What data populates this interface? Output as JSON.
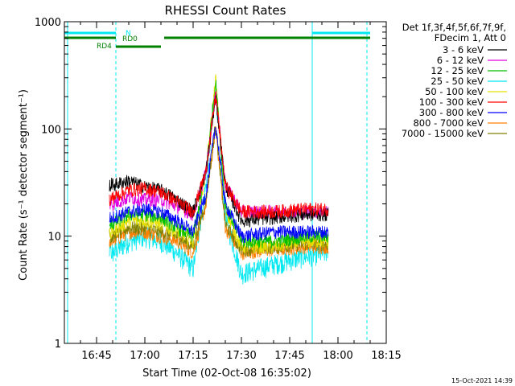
{
  "chart_data": {
    "type": "line",
    "title": "RHESSI Count Rates",
    "xlabel": "Start Time (02-Oct-08 16:35:02)",
    "ylabel": "Count Rate (s⁻¹ detector segment⁻¹)",
    "y_scale": "log",
    "ylim": [
      1,
      1000
    ],
    "xlim": [
      "16:35",
      "18:15"
    ],
    "x_ticks": [
      "16:45",
      "17:00",
      "17:15",
      "17:30",
      "17:45",
      "18:00",
      "18:15"
    ],
    "y_ticks": [
      "1",
      "10",
      "100",
      "1000"
    ],
    "grid": false,
    "legend_position": "right",
    "legend_header": [
      "Det 1f,3f,4f,5f,6f,7f,9f,",
      "FDecim 1, Att 0"
    ],
    "data_window": [
      "16:49",
      "17:57"
    ],
    "series": [
      {
        "name": "3 - 6 keV",
        "color": "#000000",
        "values": [
          {
            "x": "16:50",
            "y": 30
          },
          {
            "x": "16:55",
            "y": 33
          },
          {
            "x": "17:00",
            "y": 29
          },
          {
            "x": "17:05",
            "y": 27
          },
          {
            "x": "17:10",
            "y": 22
          },
          {
            "x": "17:15",
            "y": 17
          },
          {
            "x": "17:19",
            "y": 40
          },
          {
            "x": "17:22",
            "y": 200
          },
          {
            "x": "17:25",
            "y": 30
          },
          {
            "x": "17:30",
            "y": 14
          },
          {
            "x": "17:40",
            "y": 15
          },
          {
            "x": "17:50",
            "y": 16
          },
          {
            "x": "17:56",
            "y": 16
          }
        ]
      },
      {
        "name": "6 - 12 keV",
        "color": "#e000e0",
        "values": [
          {
            "x": "16:50",
            "y": 20
          },
          {
            "x": "16:55",
            "y": 23
          },
          {
            "x": "17:00",
            "y": 22
          },
          {
            "x": "17:05",
            "y": 22
          },
          {
            "x": "17:10",
            "y": 19
          },
          {
            "x": "17:15",
            "y": 16
          },
          {
            "x": "17:19",
            "y": 40
          },
          {
            "x": "17:22",
            "y": 220
          },
          {
            "x": "17:25",
            "y": 30
          },
          {
            "x": "17:30",
            "y": 17
          },
          {
            "x": "17:40",
            "y": 17
          },
          {
            "x": "17:50",
            "y": 17
          },
          {
            "x": "17:56",
            "y": 17
          }
        ]
      },
      {
        "name": "12 - 25 keV",
        "color": "#00c000",
        "values": [
          {
            "x": "16:50",
            "y": 13
          },
          {
            "x": "16:55",
            "y": 16
          },
          {
            "x": "17:00",
            "y": 16
          },
          {
            "x": "17:05",
            "y": 15
          },
          {
            "x": "17:10",
            "y": 12
          },
          {
            "x": "17:15",
            "y": 10
          },
          {
            "x": "17:19",
            "y": 40
          },
          {
            "x": "17:22",
            "y": 280
          },
          {
            "x": "17:25",
            "y": 20
          },
          {
            "x": "17:30",
            "y": 9
          },
          {
            "x": "17:40",
            "y": 9
          },
          {
            "x": "17:50",
            "y": 10
          },
          {
            "x": "17:56",
            "y": 10
          }
        ]
      },
      {
        "name": "25 - 50 keV",
        "color": "#00e8f0",
        "values": [
          {
            "x": "16:50",
            "y": 7
          },
          {
            "x": "16:55",
            "y": 9
          },
          {
            "x": "17:00",
            "y": 10
          },
          {
            "x": "17:05",
            "y": 9
          },
          {
            "x": "17:10",
            "y": 7
          },
          {
            "x": "17:15",
            "y": 5
          },
          {
            "x": "17:19",
            "y": 30
          },
          {
            "x": "17:22",
            "y": 250
          },
          {
            "x": "17:25",
            "y": 15
          },
          {
            "x": "17:30",
            "y": 4.5
          },
          {
            "x": "17:40",
            "y": 5.5
          },
          {
            "x": "17:50",
            "y": 6.5
          },
          {
            "x": "17:56",
            "y": 7
          }
        ]
      },
      {
        "name": "50 - 100 keV",
        "color": "#e8e000",
        "values": [
          {
            "x": "16:50",
            "y": 11
          },
          {
            "x": "16:55",
            "y": 14
          },
          {
            "x": "17:00",
            "y": 14
          },
          {
            "x": "17:05",
            "y": 13
          },
          {
            "x": "17:10",
            "y": 11
          },
          {
            "x": "17:15",
            "y": 9
          },
          {
            "x": "17:19",
            "y": 40
          },
          {
            "x": "17:22",
            "y": 300
          },
          {
            "x": "17:25",
            "y": 18
          },
          {
            "x": "17:30",
            "y": 8
          },
          {
            "x": "17:40",
            "y": 8
          },
          {
            "x": "17:50",
            "y": 9
          },
          {
            "x": "17:56",
            "y": 9
          }
        ]
      },
      {
        "name": "100 - 300 keV",
        "color": "#ff0000",
        "values": [
          {
            "x": "16:50",
            "y": 23
          },
          {
            "x": "16:55",
            "y": 27
          },
          {
            "x": "17:00",
            "y": 28
          },
          {
            "x": "17:05",
            "y": 26
          },
          {
            "x": "17:10",
            "y": 21
          },
          {
            "x": "17:15",
            "y": 17
          },
          {
            "x": "17:19",
            "y": 40
          },
          {
            "x": "17:22",
            "y": 210
          },
          {
            "x": "17:25",
            "y": 30
          },
          {
            "x": "17:30",
            "y": 17
          },
          {
            "x": "17:40",
            "y": 17
          },
          {
            "x": "17:50",
            "y": 18
          },
          {
            "x": "17:56",
            "y": 18
          }
        ]
      },
      {
        "name": "300 - 800 keV",
        "color": "#0000ff",
        "values": [
          {
            "x": "16:50",
            "y": 15
          },
          {
            "x": "16:55",
            "y": 17
          },
          {
            "x": "17:00",
            "y": 18
          },
          {
            "x": "17:05",
            "y": 17
          },
          {
            "x": "17:10",
            "y": 14
          },
          {
            "x": "17:15",
            "y": 11
          },
          {
            "x": "17:19",
            "y": 25
          },
          {
            "x": "17:22",
            "y": 110
          },
          {
            "x": "17:25",
            "y": 20
          },
          {
            "x": "17:30",
            "y": 10
          },
          {
            "x": "17:40",
            "y": 11
          },
          {
            "x": "17:50",
            "y": 11
          },
          {
            "x": "17:56",
            "y": 11
          }
        ]
      },
      {
        "name": "800 - 7000 keV",
        "color": "#ff8000",
        "values": [
          {
            "x": "16:50",
            "y": 9
          },
          {
            "x": "16:55",
            "y": 11
          },
          {
            "x": "17:00",
            "y": 11
          },
          {
            "x": "17:05",
            "y": 10
          },
          {
            "x": "17:10",
            "y": 9
          },
          {
            "x": "17:15",
            "y": 7
          },
          {
            "x": "17:19",
            "y": 20
          },
          {
            "x": "17:22",
            "y": 105
          },
          {
            "x": "17:25",
            "y": 12
          },
          {
            "x": "17:30",
            "y": 7
          },
          {
            "x": "17:40",
            "y": 7.5
          },
          {
            "x": "17:50",
            "y": 8
          },
          {
            "x": "17:56",
            "y": 8
          }
        ]
      },
      {
        "name": "7000 - 15000 keV",
        "color": "#808000",
        "values": [
          {
            "x": "16:50",
            "y": 10
          },
          {
            "x": "16:55",
            "y": 12
          },
          {
            "x": "17:00",
            "y": 12
          },
          {
            "x": "17:05",
            "y": 11
          },
          {
            "x": "17:10",
            "y": 10
          },
          {
            "x": "17:15",
            "y": 8
          },
          {
            "x": "17:19",
            "y": 22
          },
          {
            "x": "17:22",
            "y": 110
          },
          {
            "x": "17:25",
            "y": 13
          },
          {
            "x": "17:30",
            "y": 7.5
          },
          {
            "x": "17:40",
            "y": 8
          },
          {
            "x": "17:50",
            "y": 8.5
          },
          {
            "x": "17:56",
            "y": 8.5
          }
        ]
      }
    ],
    "vertical_markers": [
      {
        "x": "16:36",
        "color": "#00e8f0",
        "style": "solid"
      },
      {
        "x": "16:51",
        "color": "#00e8f0",
        "style": "dashed"
      },
      {
        "x": "17:52",
        "color": "#00e8f0",
        "style": "solid"
      },
      {
        "x": "18:09",
        "color": "#00e8f0",
        "style": "dashed"
      }
    ],
    "flag_bars": [
      {
        "label": "N",
        "color": "#00e8f0",
        "level": "top",
        "segments": [
          [
            "16:35",
            "16:51"
          ],
          [
            "17:52",
            "18:10"
          ]
        ]
      },
      {
        "label": "RD0",
        "color": "#008000",
        "level": "middle",
        "segments": [
          [
            "16:35",
            "16:51"
          ],
          [
            "17:06",
            "18:10"
          ]
        ]
      },
      {
        "label": "RD4",
        "color": "#008000",
        "level": "bottom",
        "segments": [
          [
            "16:51",
            "17:05"
          ]
        ]
      }
    ],
    "footer_timestamp": "15-Oct-2021 14:39"
  }
}
